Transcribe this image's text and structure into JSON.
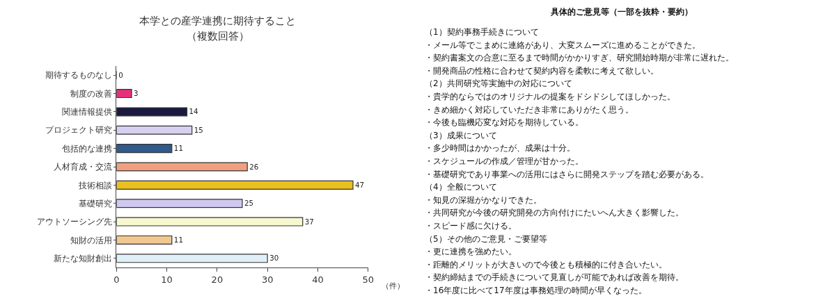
{
  "chart_data": [
    {
      "type": "bar",
      "orientation": "horizontal",
      "title": "本学との産学連携に期待すること",
      "subtitle": "（複数回答）",
      "xlabel": "（件）",
      "categories": [
        "期待するものなし",
        "制度の改善",
        "関連情報提供",
        "プロジェクト研究",
        "包括的な連携",
        "人材育成・交流",
        "技術相談",
        "基礎研究",
        "アウトソーシング先",
        "知財の活用",
        "新たな知財創出"
      ],
      "values": [
        0,
        3,
        14,
        15,
        11,
        26,
        47,
        25,
        37,
        11,
        30
      ],
      "colors": [
        "#333333",
        "#e8307a",
        "#1a1a40",
        "#d8d0f0",
        "#2e5a8c",
        "#f0a080",
        "#e8c020",
        "#d0c8f0",
        "#f8f8d0",
        "#f0c890",
        "#e0f0f8"
      ],
      "xlim": [
        0,
        50
      ],
      "xticks": [
        0,
        10,
        20,
        30,
        40,
        50
      ],
      "data_labels": true
    },
    {
      "type": "other",
      "title": "具体的ご意見等（一部を抜粋・要約）",
      "annotations": [
        "（1）契約事務手続きについて",
        "・メール等でこまめに連絡があり、大変スムーズに進めることができた。",
        "・契約書案文の合意に至るまで時間がかかりすぎ、研究開始時期が非常に遅れた。",
        "・開発商品の性格に合わせて契約内容を柔軟に考えて欲しい。",
        "（2）共同研究等実施中の対応について",
        "・貴学的ならではのオリジナルの提案をドシドシしてほしかった。",
        "・きめ細かく対応していただき非常にありがたく思う。",
        "・今後も臨機応変な対応を期待している。",
        "（3）成果について",
        "・多少時間はかかったが、成果は十分。",
        "・スケジュールの作成／管理が甘かった。",
        "・基礎研究であり事業への活用にはさらに開発ステップを踏む必要がある。",
        "（4）全般について",
        "・知見の深堀がかなりできた。",
        "・共同研究が今後の研究開発の方向付けにたいへん大きく影響した。",
        "・スピード感に欠ける。",
        "（5）その他のご意見・ご要望等",
        "・更に連携を強めたい。",
        "・距離的メリットが大きいので今後とも積極的に付き合いたい。",
        "・契約締結までの手続きについて見直しが可能であれば改善を期待。",
        "・16年度に比べて17年度は事務処理の時間が早くなった。"
      ]
    }
  ]
}
